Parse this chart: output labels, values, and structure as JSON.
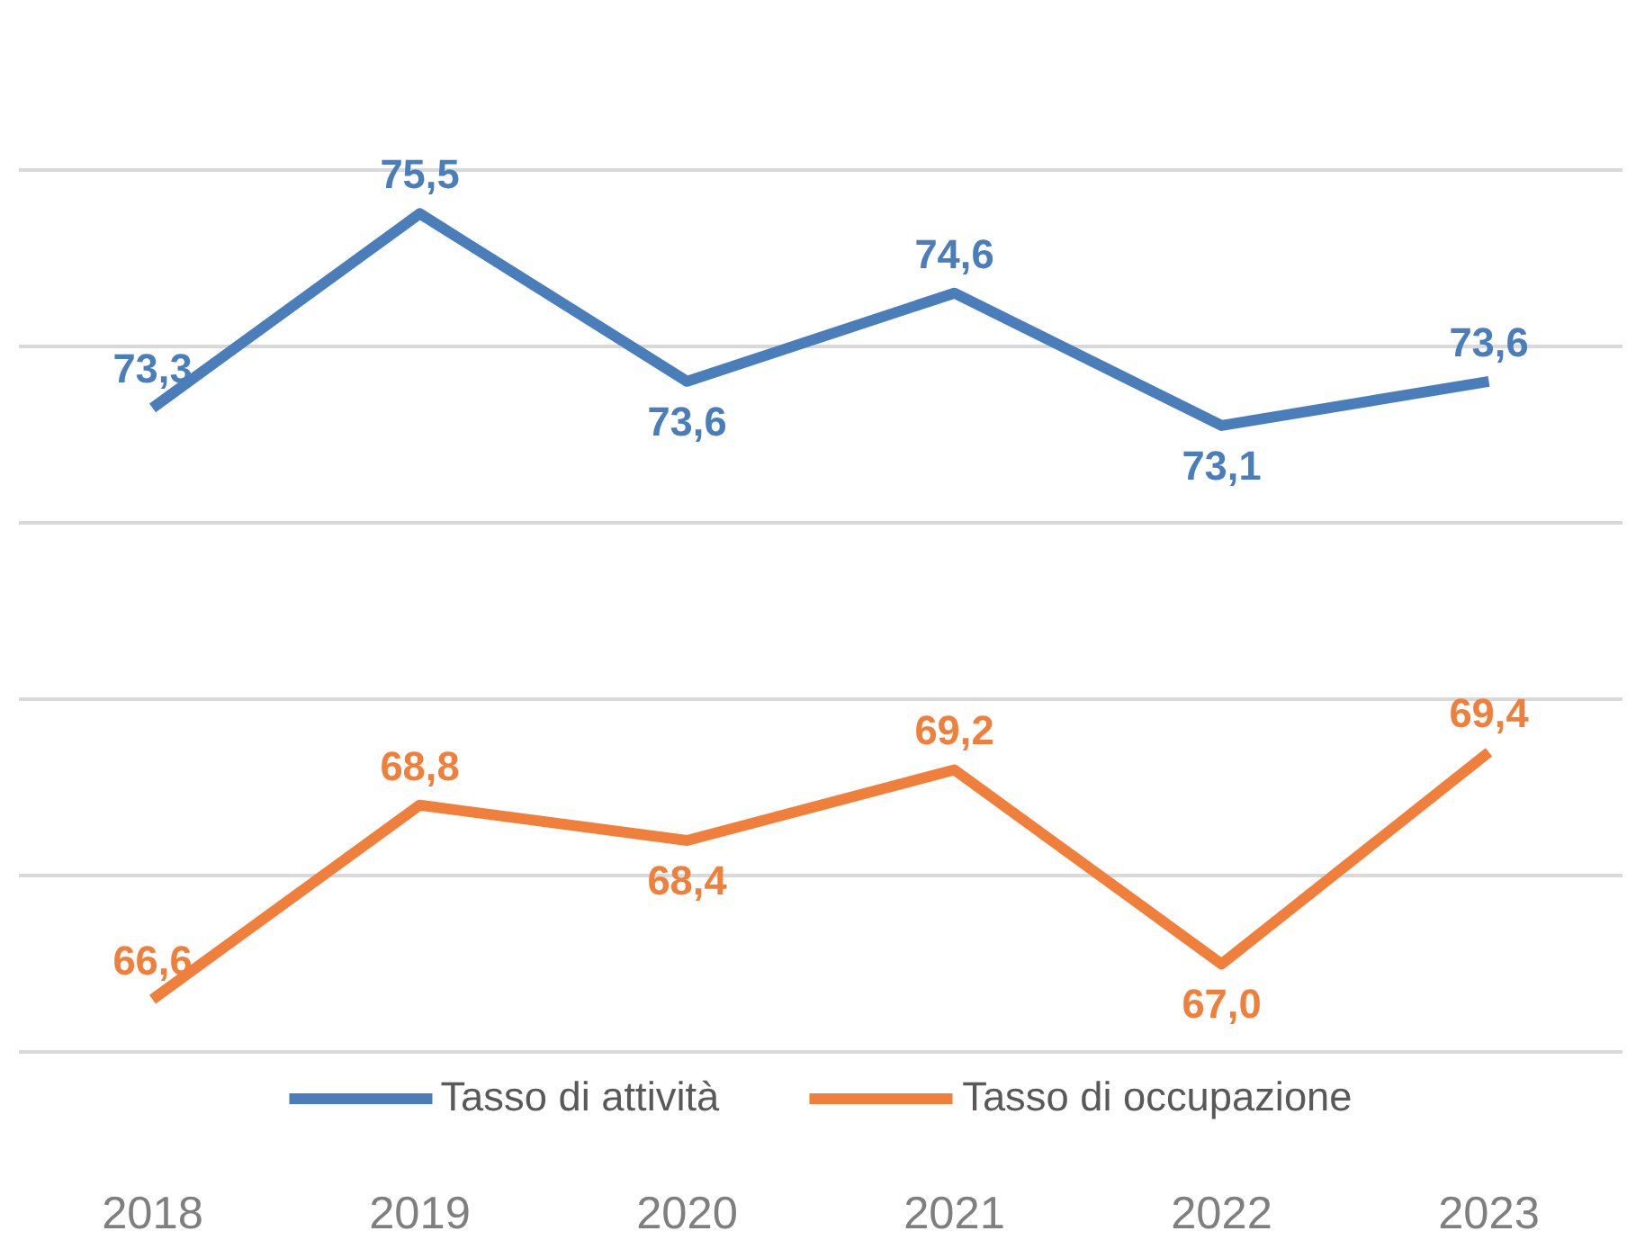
{
  "chart_data": {
    "type": "line",
    "categories": [
      "2018",
      "2019",
      "2020",
      "2021",
      "2022",
      "2023"
    ],
    "series": [
      {
        "name": "Tasso di attività",
        "color": "#4a7ebb",
        "values": [
          73.3,
          75.5,
          73.6,
          74.6,
          73.1,
          73.6
        ],
        "value_labels": [
          "73,3",
          "75,5",
          "73,6",
          "74,6",
          "73,1",
          "73,6"
        ]
      },
      {
        "name": "Tasso di occupazione",
        "color": "#f07f3c",
        "values": [
          66.6,
          68.8,
          68.4,
          69.2,
          67.0,
          69.4
        ],
        "value_labels": [
          "66,6",
          "68,8",
          "68,4",
          "69,2",
          "67,0",
          "69,4"
        ]
      }
    ],
    "tick_labels": "x",
    "grid": "y",
    "legend": "bottom",
    "marker": "none",
    "line_style": "solid"
  }
}
